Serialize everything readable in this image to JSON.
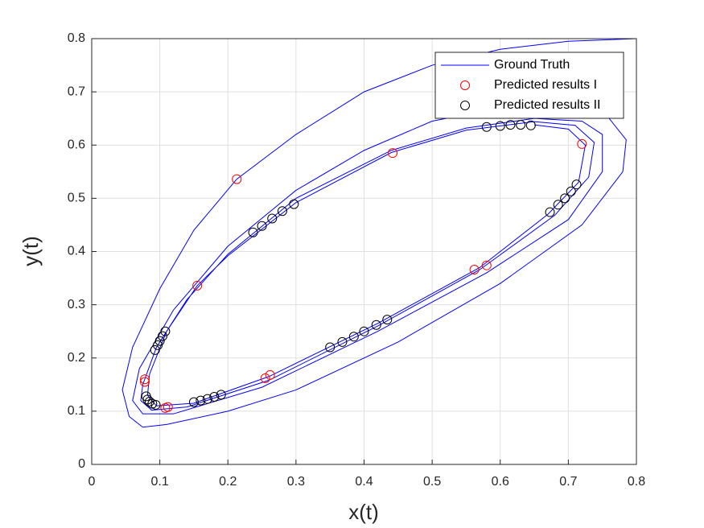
{
  "chart_data": {
    "type": "line",
    "xlabel": "x(t)",
    "ylabel": "y(t)",
    "xlim": [
      0,
      0.8
    ],
    "ylim": [
      0,
      0.8
    ],
    "xticks": [
      0,
      0.1,
      0.2,
      0.3,
      0.4,
      0.5,
      0.6,
      0.7,
      0.8
    ],
    "yticks": [
      0,
      0.1,
      0.2,
      0.3,
      0.4,
      0.5,
      0.6,
      0.7,
      0.8
    ],
    "grid": true,
    "legend": "northeast",
    "series": [
      {
        "name": "Ground Truth",
        "type": "line",
        "color": "#0000ff",
        "x": [
          0.8,
          0.7,
          0.6,
          0.5,
          0.4,
          0.3,
          0.213,
          0.15,
          0.1,
          0.06,
          0.045,
          0.055,
          0.075,
          0.11,
          0.2,
          0.3,
          0.45,
          0.6,
          0.72,
          0.78,
          0.785,
          0.76,
          0.7,
          0.6,
          0.5,
          0.4,
          0.3,
          0.2,
          0.12,
          0.07,
          0.06,
          0.075,
          0.12,
          0.25,
          0.42,
          0.58,
          0.7,
          0.75,
          0.75,
          0.72,
          0.65,
          0.55,
          0.44,
          0.3,
          0.2,
          0.14,
          0.095,
          0.075,
          0.072,
          0.088,
          0.14,
          0.26,
          0.42,
          0.57,
          0.68,
          0.73,
          0.738,
          0.71,
          0.65,
          0.55,
          0.44,
          0.3,
          0.2,
          0.155,
          0.11,
          0.085,
          0.082,
          0.095,
          0.15,
          0.26,
          0.42,
          0.57,
          0.67,
          0.715,
          0.725,
          0.7,
          0.65
        ],
        "values": [
          0.8,
          0.795,
          0.78,
          0.75,
          0.7,
          0.62,
          0.536,
          0.44,
          0.33,
          0.22,
          0.14,
          0.09,
          0.07,
          0.075,
          0.1,
          0.14,
          0.23,
          0.34,
          0.45,
          0.55,
          0.61,
          0.65,
          0.67,
          0.67,
          0.645,
          0.59,
          0.515,
          0.41,
          0.29,
          0.18,
          0.12,
          0.095,
          0.095,
          0.145,
          0.25,
          0.36,
          0.46,
          0.55,
          0.62,
          0.645,
          0.65,
          0.632,
          0.59,
          0.5,
          0.395,
          0.31,
          0.22,
          0.15,
          0.12,
          0.102,
          0.108,
          0.158,
          0.26,
          0.366,
          0.468,
          0.54,
          0.605,
          0.637,
          0.644,
          0.628,
          0.586,
          0.492,
          0.392,
          0.336,
          0.25,
          0.17,
          0.13,
          0.11,
          0.115,
          0.165,
          0.265,
          0.37,
          0.47,
          0.53,
          0.6,
          0.63,
          0.638
        ]
      },
      {
        "name": "Predicted results I",
        "type": "scatter",
        "color": "#ff0000",
        "x": [
          0.213,
          0.442,
          0.72,
          0.155,
          0.078,
          0.078,
          0.108,
          0.112,
          0.255,
          0.262,
          0.562,
          0.58
        ],
        "values": [
          0.536,
          0.585,
          0.602,
          0.336,
          0.16,
          0.155,
          0.106,
          0.108,
          0.162,
          0.168,
          0.366,
          0.374
        ]
      },
      {
        "name": "Predicted results II",
        "type": "scatter",
        "color": "#000000",
        "x": [
          0.58,
          0.6,
          0.615,
          0.63,
          0.645,
          0.673,
          0.685,
          0.695,
          0.704,
          0.712,
          0.237,
          0.25,
          0.265,
          0.28,
          0.297,
          0.093,
          0.097,
          0.1,
          0.104,
          0.108,
          0.08,
          0.082,
          0.085,
          0.089,
          0.094,
          0.15,
          0.16,
          0.17,
          0.18,
          0.19,
          0.35,
          0.368,
          0.385,
          0.4,
          0.418,
          0.434
        ],
        "values": [
          0.634,
          0.636,
          0.638,
          0.638,
          0.637,
          0.474,
          0.488,
          0.5,
          0.513,
          0.526,
          0.436,
          0.448,
          0.462,
          0.476,
          0.489,
          0.215,
          0.224,
          0.232,
          0.241,
          0.25,
          0.128,
          0.122,
          0.118,
          0.114,
          0.112,
          0.117,
          0.12,
          0.123,
          0.127,
          0.131,
          0.22,
          0.23,
          0.24,
          0.25,
          0.262,
          0.272
        ]
      }
    ]
  }
}
